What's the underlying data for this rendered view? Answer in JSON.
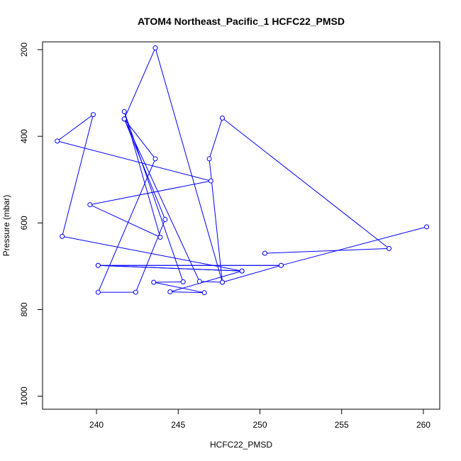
{
  "chart_data": {
    "type": "line",
    "title": "ATOM4 Northeast_Pacific_1 HCFC22_PMSD",
    "xlabel": "HCFC22_PMSD",
    "ylabel": "Pressure (mbar)",
    "xlim": [
      236.7,
      261.0
    ],
    "ylim": [
      1030,
      182
    ],
    "y_reversed": true,
    "x_ticks": [
      240,
      245,
      250,
      255,
      260
    ],
    "y_ticks": [
      200,
      400,
      600,
      800,
      1000
    ],
    "grid": false,
    "legend": "none",
    "color": "#0000ff",
    "marker": "open-circle",
    "points": [
      {
        "x": 260.2,
        "y": 609
      },
      {
        "x": 251.3,
        "y": 698
      },
      {
        "x": 240.1,
        "y": 698
      },
      {
        "x": 248.9,
        "y": 711
      },
      {
        "x": 244.5,
        "y": 759
      },
      {
        "x": 246.6,
        "y": 761
      },
      {
        "x": 243.5,
        "y": 737
      },
      {
        "x": 245.3,
        "y": 736
      },
      {
        "x": 241.7,
        "y": 343
      },
      {
        "x": 243.9,
        "y": 633
      },
      {
        "x": 239.6,
        "y": 558
      },
      {
        "x": 247.0,
        "y": 503
      },
      {
        "x": 237.6,
        "y": 411
      },
      {
        "x": 239.8,
        "y": 350
      },
      {
        "x": 237.9,
        "y": 631
      },
      {
        "x": 248.9,
        "y": 711
      },
      {
        "x": 240.1,
        "y": 698
      },
      {
        "x": 251.3,
        "y": 698
      },
      {
        "x": 247.7,
        "y": 737
      },
      {
        "x": 243.6,
        "y": 196
      },
      {
        "x": 241.7,
        "y": 360
      },
      {
        "x": 243.6,
        "y": 452
      },
      {
        "x": 240.1,
        "y": 760
      },
      {
        "x": 242.4,
        "y": 760
      },
      {
        "x": 244.2,
        "y": 592
      },
      {
        "x": 241.7,
        "y": 360
      },
      {
        "x": 246.3,
        "y": 735
      },
      {
        "x": 247.7,
        "y": 737
      },
      {
        "x": 246.9,
        "y": 452
      },
      {
        "x": 247.7,
        "y": 358
      },
      {
        "x": 257.9,
        "y": 659
      },
      {
        "x": 250.3,
        "y": 670
      }
    ]
  }
}
